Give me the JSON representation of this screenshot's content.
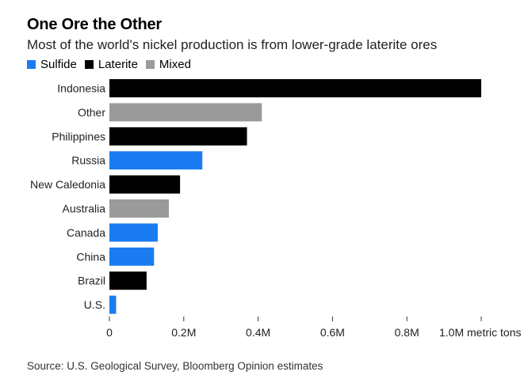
{
  "title": "One Ore the Other",
  "subtitle": "Most of the world's nickel production is from lower-grade laterite ores",
  "source": "Source: U.S. Geological Survey, Bloomberg Opinion estimates",
  "legend": [
    {
      "name": "Sulfide",
      "color": "#1a7cf0"
    },
    {
      "name": "Laterite",
      "color": "#000000"
    },
    {
      "name": "Mixed",
      "color": "#9a9a9a"
    }
  ],
  "chart_data": {
    "type": "bar",
    "orientation": "horizontal",
    "title": "One Ore the Other",
    "subtitle": "Most of the world's nickel production is from lower-grade laterite ores",
    "xlabel": "metric tons",
    "ylabel": "",
    "xlim": [
      0,
      1000000
    ],
    "ticks": [
      {
        "value": 0,
        "label": "0"
      },
      {
        "value": 200000,
        "label": "0.2M"
      },
      {
        "value": 400000,
        "label": "0.4M"
      },
      {
        "value": 600000,
        "label": "0.6M"
      },
      {
        "value": 800000,
        "label": "0.8M"
      },
      {
        "value": 1000000,
        "label": "1.0M metric tons"
      }
    ],
    "categories": [
      "Indonesia",
      "Other",
      "Philippines",
      "Russia",
      "New Caledonia",
      "Australia",
      "Canada",
      "China",
      "Brazil",
      "U.S."
    ],
    "values": [
      1000000,
      410000,
      370000,
      250000,
      190000,
      160000,
      130000,
      120000,
      100000,
      18000
    ],
    "ore_type": [
      "Laterite",
      "Mixed",
      "Laterite",
      "Sulfide",
      "Laterite",
      "Mixed",
      "Sulfide",
      "Sulfide",
      "Laterite",
      "Sulfide"
    ],
    "grid": false,
    "legend_position": "top-left"
  }
}
